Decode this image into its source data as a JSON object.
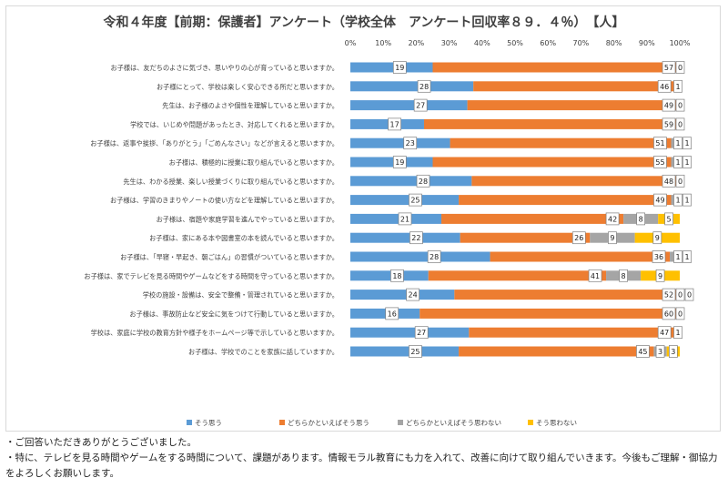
{
  "chart_data": {
    "type": "bar",
    "stacked": true,
    "orientation": "horizontal",
    "title": "令和４年度【前期：保護者】アンケート（学校全体　アンケート回収率８９．４％）　【人】",
    "x_ticks": [
      "0%",
      "10%",
      "20%",
      "30%",
      "40%",
      "50%",
      "60%",
      "70%",
      "80%",
      "90%",
      "100%"
    ],
    "xlim": [
      0,
      100
    ],
    "legend_position": "bottom",
    "grid": false,
    "categories": [
      "お子様は、友だちのよさに気づき、思いやりの心が育っていると思いますか。",
      "お子様にとって、学校は楽しく安心できる所だと思いますか。",
      "先生は、お子様のよさや個性を理解していると思いますか。",
      "学校では、いじめや問題があったとき、対応してくれると思いますか。",
      "お子様は、返事や挨拶、「ありがとう」「ごめんなさい」などが言えると思いますか。",
      "お子様は、積極的に授業に取り組んでいると思いますか。",
      "先生は、わかる授業、楽しい授業づくりに取り組んでいると思いますか。",
      "お子様は、学習のきまりやノートの使い方などを理解していると思いますか。",
      "お子様は、宿題や家庭学習を進んでやっていると思いますか。",
      "お子様は、家にある本や図書室の本を読んでいると思いますか。",
      "お子様は、「早寝・早起き、朝ごはん」の習慣がついていると思いますか。",
      "お子様は、家でテレビを見る時間やゲームなどをする時間を守っていると思いますか。",
      "学校の施設・設備は、安全で整備・管理されていると思いますか。",
      "お子様は、事故防止など安全に気をつけて行動していると思いますか。",
      "学校は、家庭に学校の教育方針や様子をホームページ等で示していると思いますか。",
      "お子様は、学校でのことを家族に話していますか。"
    ],
    "series": [
      {
        "name": "そう思う",
        "color": "#5b9bd5",
        "values": [
          19,
          28,
          27,
          17,
          23,
          19,
          28,
          25,
          21,
          22,
          28,
          18,
          24,
          16,
          27,
          25
        ]
      },
      {
        "name": "どちらかといえばそう思う",
        "color": "#ed7d31",
        "values": [
          57,
          46,
          49,
          59,
          51,
          55,
          48,
          49,
          42,
          26,
          36,
          41,
          52,
          60,
          47,
          45
        ]
      },
      {
        "name": "どちらかといえばそう思わない",
        "color": "#a5a5a5",
        "values": [
          0,
          1,
          0,
          0,
          1,
          1,
          0,
          1,
          8,
          9,
          1,
          8,
          0,
          0,
          1,
          3
        ]
      },
      {
        "name": "そう思わない",
        "color": "#ffc000",
        "values": [
          0,
          0,
          0,
          0,
          1,
          1,
          0,
          1,
          5,
          9,
          1,
          9,
          0,
          0,
          0,
          3
        ]
      }
    ],
    "data_labels": [
      [
        "19",
        "57",
        "0"
      ],
      [
        "28",
        "46",
        "1"
      ],
      [
        "27",
        "49",
        "0"
      ],
      [
        "17",
        "59",
        "0"
      ],
      [
        "23",
        "51",
        "1",
        "1"
      ],
      [
        "19",
        "55",
        "1",
        "1"
      ],
      [
        "28",
        "48",
        "0"
      ],
      [
        "25",
        "49",
        "1",
        "1"
      ],
      [
        "21",
        "42",
        "8",
        "5"
      ],
      [
        "22",
        "26",
        "9",
        "9"
      ],
      [
        "28",
        "36",
        "1",
        "1"
      ],
      [
        "18",
        "41",
        "8",
        "9"
      ],
      [
        "24",
        "52",
        "0",
        "0"
      ],
      [
        "16",
        "60",
        "0"
      ],
      [
        "27",
        "47",
        "1"
      ],
      [
        "25",
        "45",
        "3",
        "3"
      ]
    ]
  },
  "comments": [
    "・ご回答いただきありがとうございました。",
    "・特に、テレビを見る時間やゲームをする時間について、課題があります。情報モラル教育にも力を入れて、改善に向けて取り組んでいきます。今後もご理解・御協力をよろしくお願いします。"
  ]
}
